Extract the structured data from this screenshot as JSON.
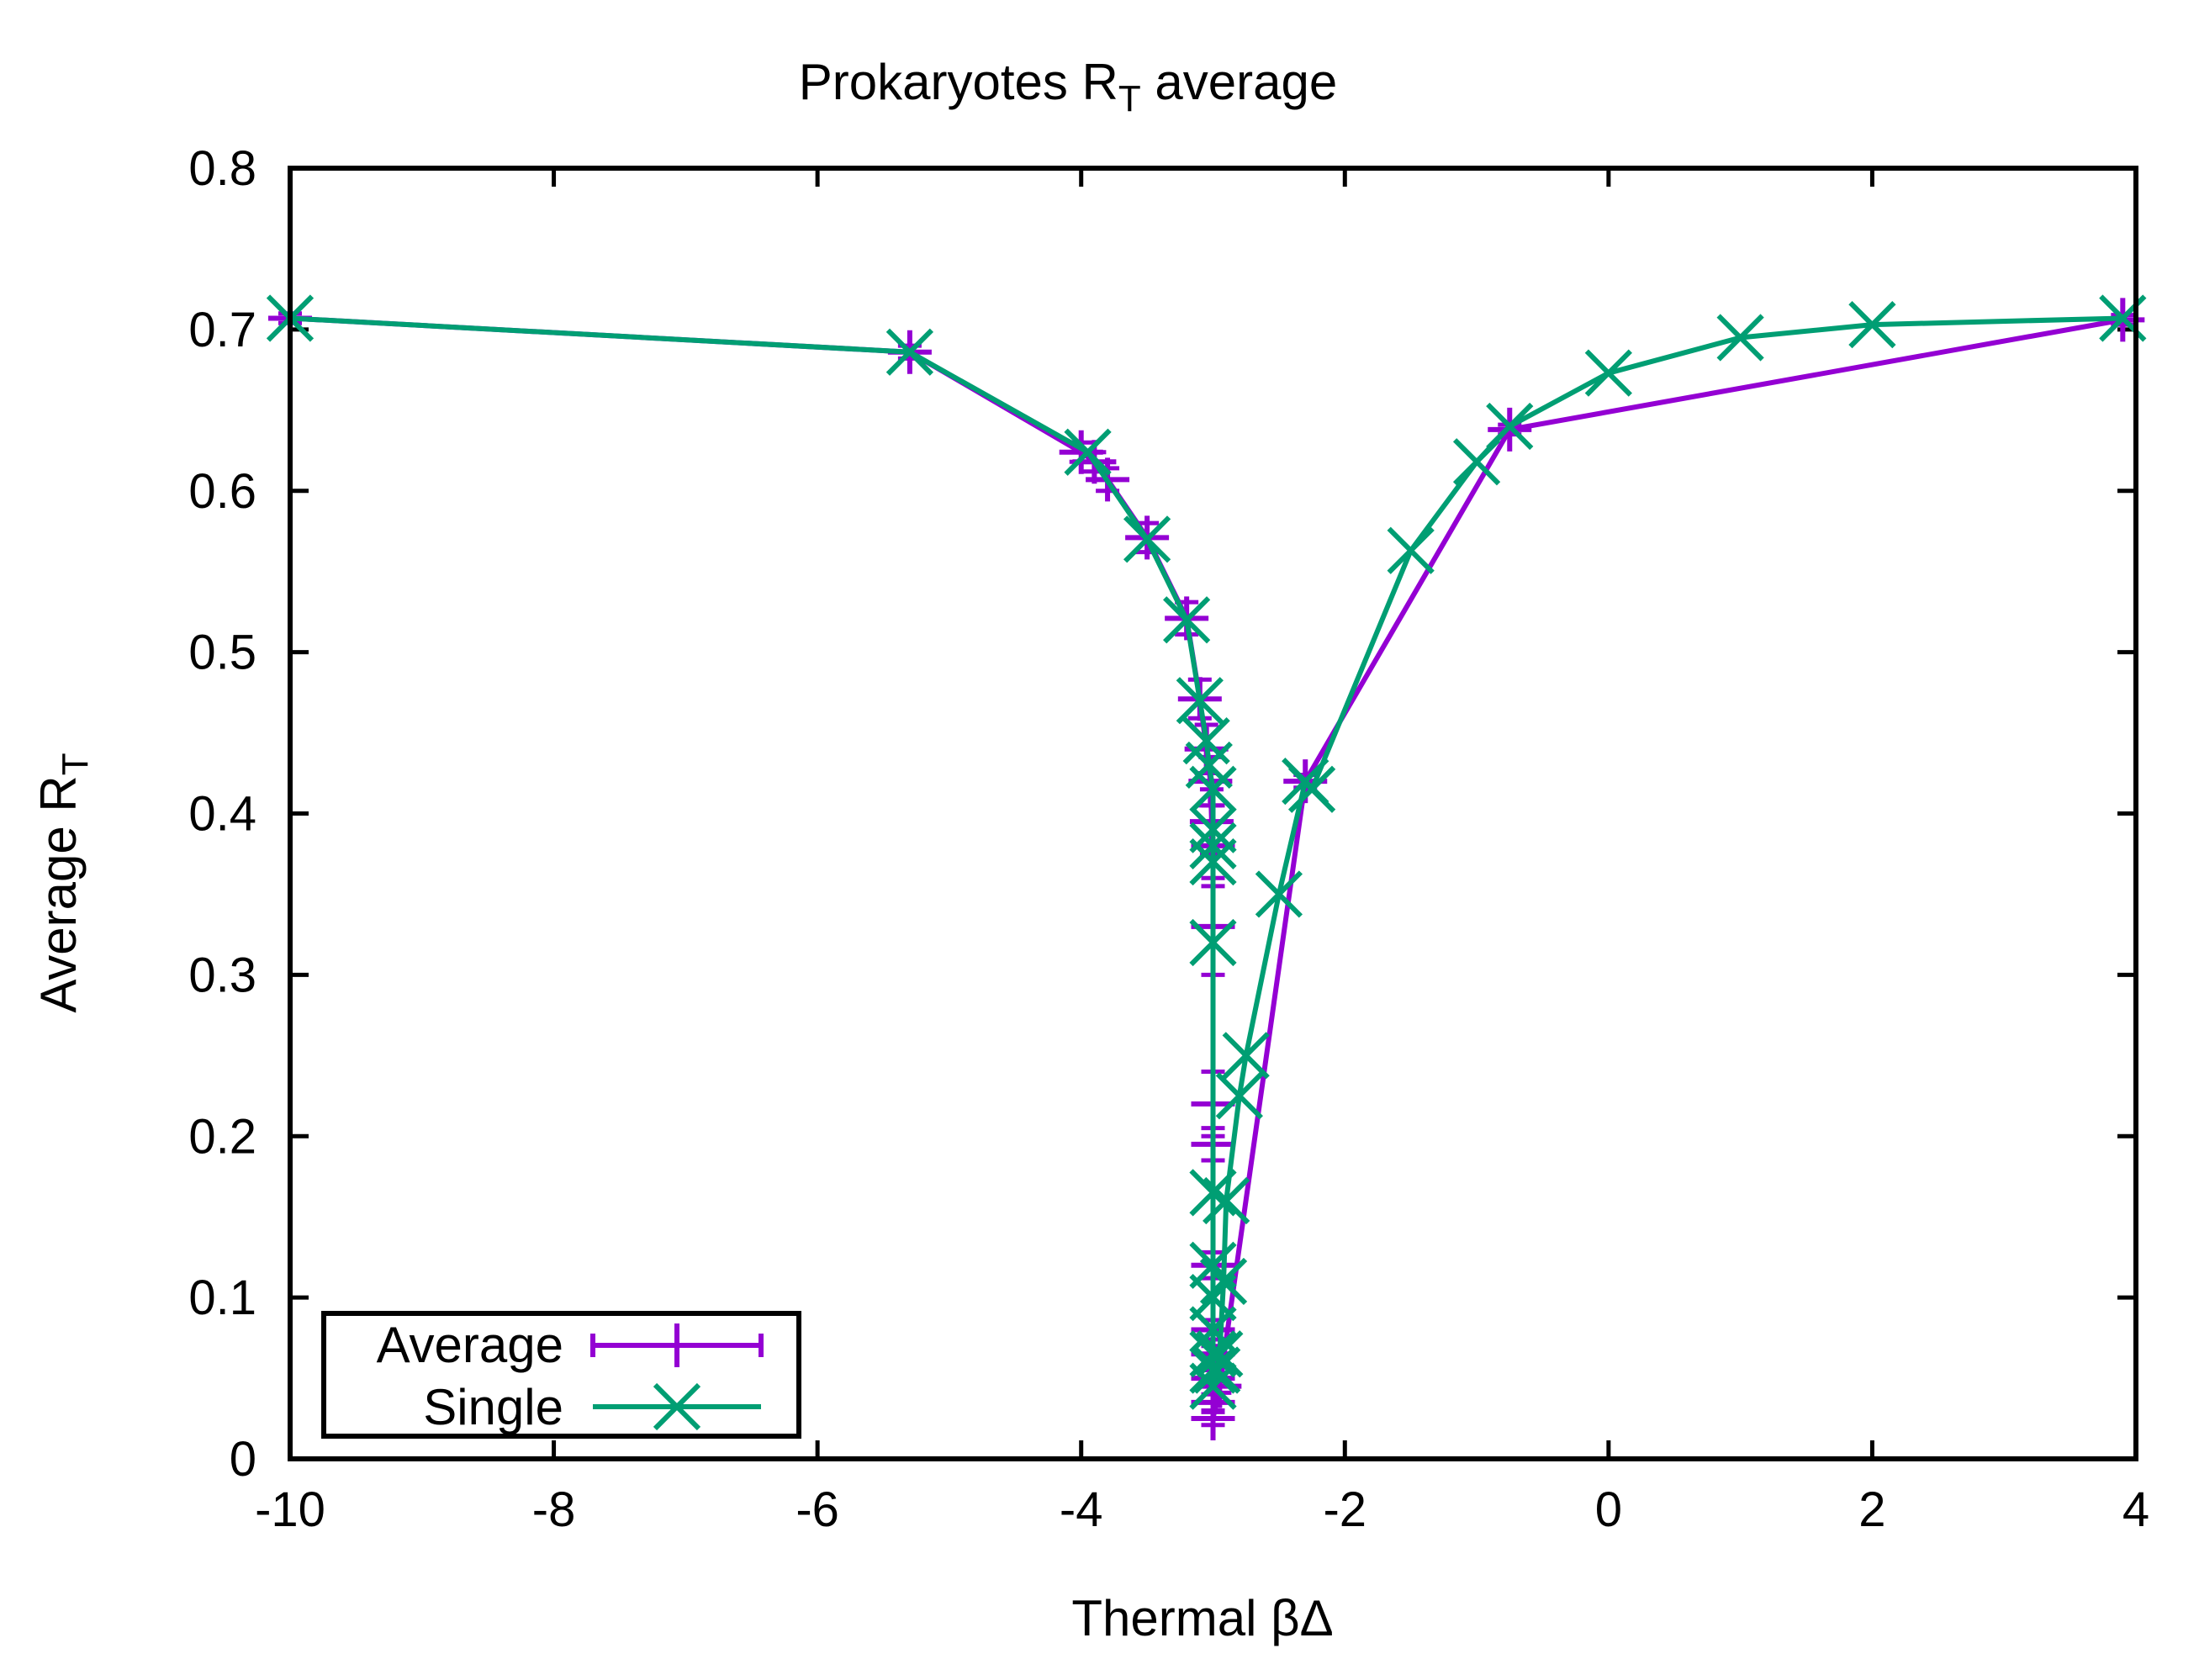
{
  "chart_data": {
    "type": "line",
    "title": "Prokaryotes R",
    "title_subscript": "T",
    "title_suffix": " average",
    "xlabel": "Thermal βΔ",
    "ylabel": "Average R",
    "ylabel_subscript": "T",
    "xlim": [
      -10,
      4
    ],
    "ylim": [
      0,
      0.8
    ],
    "xticks": [
      -10,
      -8,
      -6,
      -4,
      -2,
      0,
      2,
      4
    ],
    "xtick_labels": [
      "-10",
      "-8",
      "-6",
      "-4",
      "-2",
      "0",
      "2",
      "4"
    ],
    "yticks": [
      0,
      0.1,
      0.2,
      0.3,
      0.4,
      0.5,
      0.6,
      0.7,
      0.8
    ],
    "ytick_labels": [
      "0",
      "0.1",
      "0.2",
      "0.3",
      "0.4",
      "0.5",
      "0.6",
      "0.7",
      "0.8"
    ],
    "grid": false,
    "legend_position": "bottom-left",
    "series": [
      {
        "name": "Average",
        "color": "#9400d3",
        "marker": "plus",
        "error_bars": true,
        "points": [
          {
            "x": -10,
            "y": 0.707,
            "err": 0.003
          },
          {
            "x": -5.3,
            "y": 0.686,
            "err": 0.004
          },
          {
            "x": -4,
            "y": 0.624,
            "err": 0.006
          },
          {
            "x": -3.9,
            "y": 0.618,
            "err": 0.006
          },
          {
            "x": -3.8,
            "y": 0.607,
            "err": 0.007
          },
          {
            "x": -3.5,
            "y": 0.571,
            "err": 0.009
          },
          {
            "x": -3.2,
            "y": 0.521,
            "err": 0.01
          },
          {
            "x": -3.1,
            "y": 0.471,
            "err": 0.012
          },
          {
            "x": -3.05,
            "y": 0.44,
            "err": 0.015
          },
          {
            "x": -3.02,
            "y": 0.42,
            "err": 0.015
          },
          {
            "x": -3.01,
            "y": 0.395,
            "err": 0.02
          },
          {
            "x": -3.0,
            "y": 0.38,
            "err": 0.025
          },
          {
            "x": -3.0,
            "y": 0.33,
            "err": 0.03
          },
          {
            "x": -3.0,
            "y": 0.22,
            "err": 0.02
          },
          {
            "x": -3.0,
            "y": 0.195,
            "err": 0.01
          },
          {
            "x": -3.0,
            "y": 0.12,
            "err": 0.008
          },
          {
            "x": -3.0,
            "y": 0.08,
            "err": 0.006
          },
          {
            "x": -3.0,
            "y": 0.065,
            "err": 0.005
          },
          {
            "x": -3.0,
            "y": 0.05,
            "err": 0.005
          },
          {
            "x": -3.0,
            "y": 0.035,
            "err": 0.005
          },
          {
            "x": -3.0,
            "y": 0.025,
            "err": 0.004
          },
          {
            "x": -2.95,
            "y": 0.045,
            "err": 0.004
          },
          {
            "x": -2.3,
            "y": 0.42,
            "err": 0.004
          },
          {
            "x": -0.75,
            "y": 0.638,
            "err": 0.003
          },
          {
            "x": 3.9,
            "y": 0.706,
            "err": 0.003
          }
        ]
      },
      {
        "name": "Single",
        "color": "#009e73",
        "marker": "x",
        "error_bars": false,
        "points": [
          {
            "x": -10,
            "y": 0.707
          },
          {
            "x": -5.3,
            "y": 0.686
          },
          {
            "x": -3.95,
            "y": 0.624
          },
          {
            "x": -3.5,
            "y": 0.57
          },
          {
            "x": -3.2,
            "y": 0.52
          },
          {
            "x": -3.1,
            "y": 0.47
          },
          {
            "x": -3.05,
            "y": 0.445
          },
          {
            "x": -3.03,
            "y": 0.43
          },
          {
            "x": -3.0,
            "y": 0.415
          },
          {
            "x": -3.0,
            "y": 0.39
          },
          {
            "x": -3.0,
            "y": 0.38
          },
          {
            "x": -3.0,
            "y": 0.37
          },
          {
            "x": -3.0,
            "y": 0.32
          },
          {
            "x": -3.0,
            "y": 0.165
          },
          {
            "x": -3.0,
            "y": 0.12
          },
          {
            "x": -3.0,
            "y": 0.1
          },
          {
            "x": -3.0,
            "y": 0.08
          },
          {
            "x": -3.0,
            "y": 0.065
          },
          {
            "x": -3.0,
            "y": 0.055
          },
          {
            "x": -3.0,
            "y": 0.045
          },
          {
            "x": -2.97,
            "y": 0.055
          },
          {
            "x": -2.95,
            "y": 0.065
          },
          {
            "x": -2.92,
            "y": 0.11
          },
          {
            "x": -2.9,
            "y": 0.16
          },
          {
            "x": -2.8,
            "y": 0.225
          },
          {
            "x": -2.75,
            "y": 0.25
          },
          {
            "x": -2.5,
            "y": 0.35
          },
          {
            "x": -2.3,
            "y": 0.42
          },
          {
            "x": -2.25,
            "y": 0.415
          },
          {
            "x": -1.5,
            "y": 0.563
          },
          {
            "x": -1.0,
            "y": 0.618
          },
          {
            "x": -0.75,
            "y": 0.64
          },
          {
            "x": 0.0,
            "y": 0.673
          },
          {
            "x": 1.0,
            "y": 0.695
          },
          {
            "x": 2.0,
            "y": 0.703
          },
          {
            "x": 3.9,
            "y": 0.707
          }
        ]
      }
    ]
  },
  "legend": {
    "items": [
      {
        "label": "Average"
      },
      {
        "label": "Single"
      }
    ]
  }
}
